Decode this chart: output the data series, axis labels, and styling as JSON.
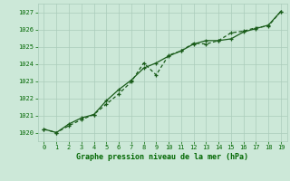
{
  "title": "Graphe pression niveau de la mer (hPa)",
  "xlim": [
    -0.5,
    19.5
  ],
  "ylim": [
    1019.5,
    1027.5
  ],
  "yticks": [
    1020,
    1021,
    1022,
    1023,
    1024,
    1025,
    1026,
    1027
  ],
  "xticks": [
    0,
    1,
    2,
    3,
    4,
    5,
    6,
    7,
    8,
    9,
    10,
    11,
    12,
    13,
    14,
    15,
    16,
    17,
    18,
    19
  ],
  "line1_x": [
    0,
    1,
    2,
    3,
    4,
    5,
    6,
    7,
    8,
    9,
    10,
    11,
    12,
    13,
    14,
    15,
    16,
    17,
    18,
    19
  ],
  "line1_y": [
    1020.2,
    1020.0,
    1020.4,
    1020.75,
    1021.05,
    1021.65,
    1022.25,
    1022.95,
    1024.05,
    1023.35,
    1024.5,
    1024.75,
    1025.2,
    1025.15,
    1025.35,
    1025.8,
    1025.9,
    1026.1,
    1026.2,
    1027.05
  ],
  "line2_x": [
    0,
    1,
    2,
    3,
    4,
    5,
    6,
    7,
    8,
    9,
    10,
    11,
    12,
    13,
    14,
    15,
    16,
    17,
    18,
    19
  ],
  "line2_y": [
    1020.2,
    1020.0,
    1020.5,
    1020.85,
    1021.05,
    1021.85,
    1022.5,
    1023.05,
    1023.75,
    1024.05,
    1024.45,
    1024.75,
    1025.15,
    1025.35,
    1025.35,
    1025.45,
    1025.85,
    1026.05,
    1026.25,
    1027.05
  ],
  "line_color": "#1a5c1a",
  "bg_color": "#cce8d8",
  "grid_color": "#aaccbb",
  "title_color": "#006600",
  "tick_color": "#006600"
}
